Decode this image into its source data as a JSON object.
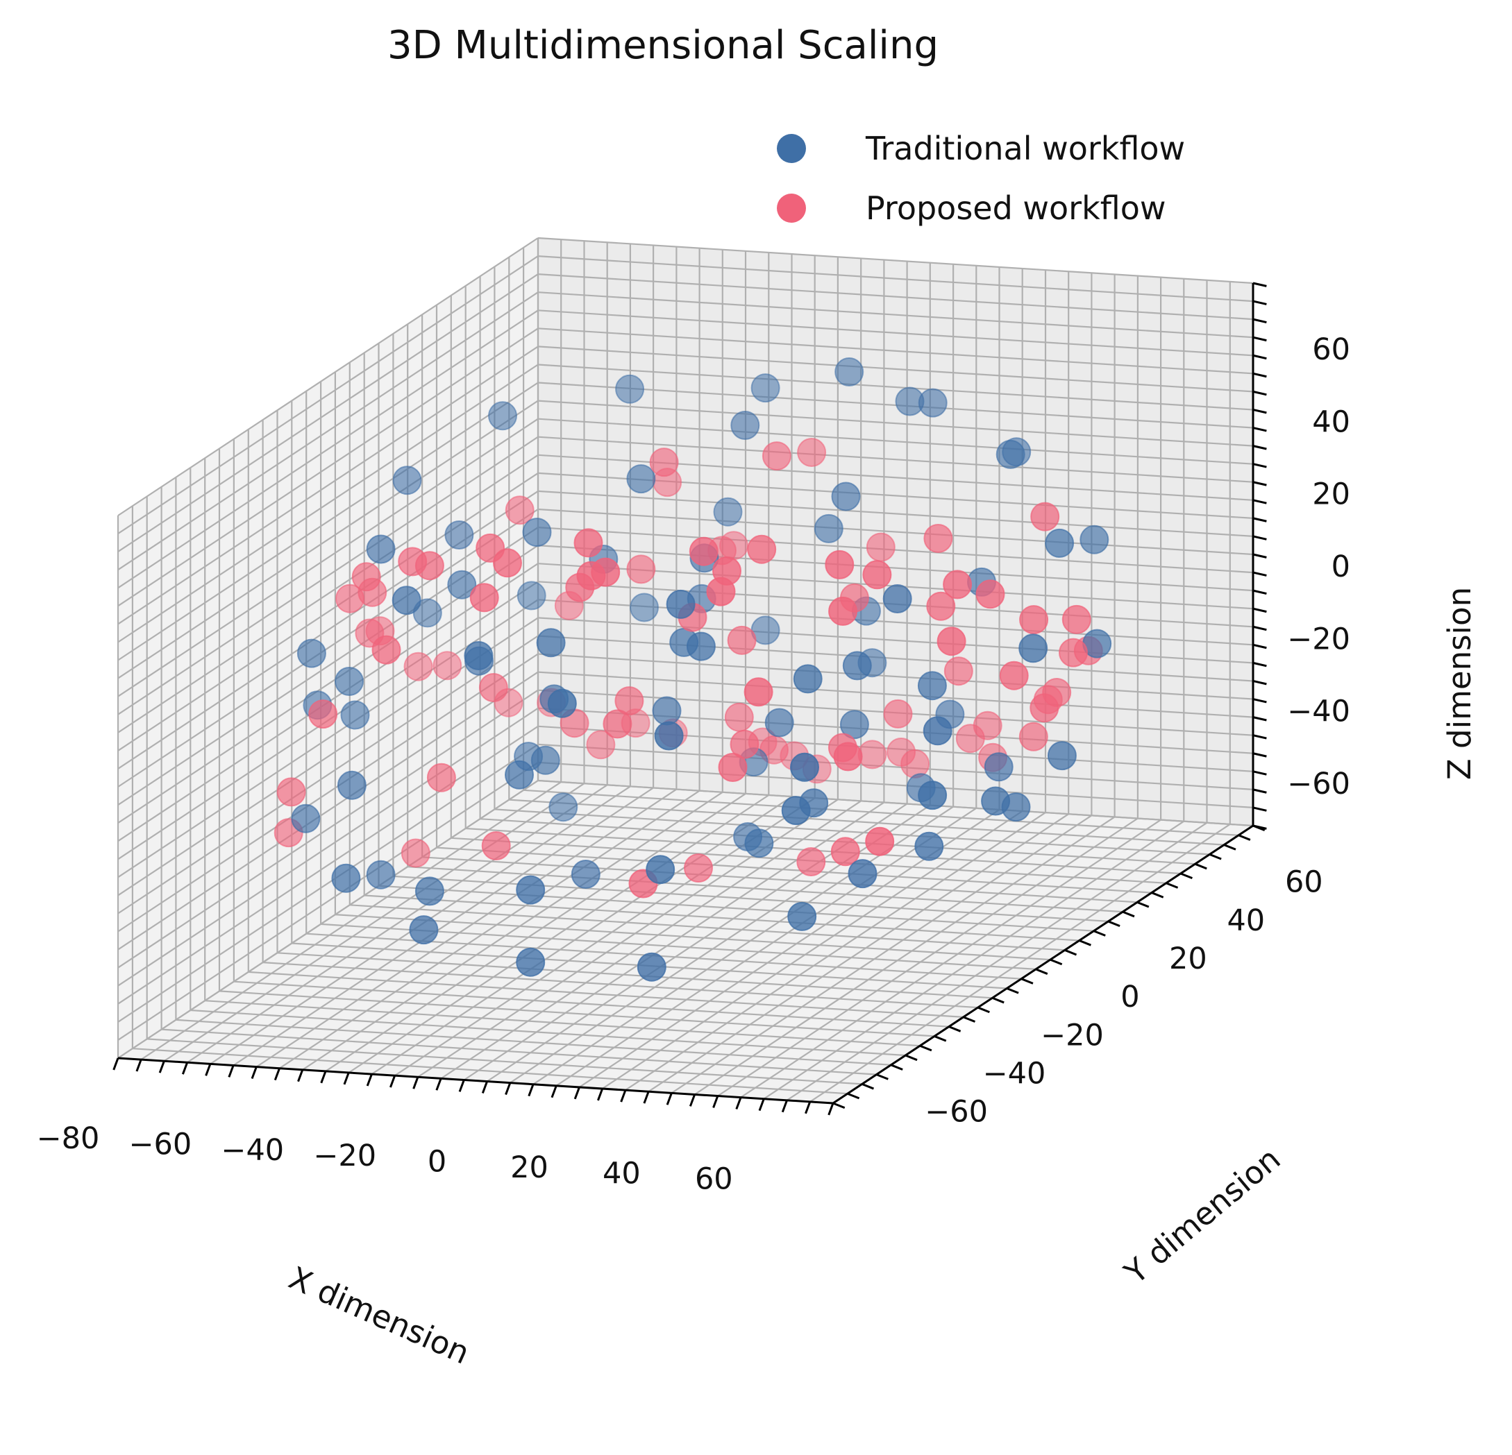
{
  "chart_data": {
    "type": "scatter",
    "title": "3D Multidimensional Scaling",
    "xlabel": "X dimension",
    "ylabel": "Y dimension",
    "zlabel": "Z dimension",
    "xlim": [
      -80,
      75
    ],
    "ylim": [
      -75,
      70
    ],
    "zlim": [
      -75,
      75
    ],
    "x_ticks": [
      "−80",
      "−60",
      "−40",
      "−20",
      "0",
      "20",
      "40",
      "60"
    ],
    "y_ticks": [
      "−60",
      "−40",
      "−20",
      "0",
      "20",
      "40",
      "60"
    ],
    "z_ticks": [
      "−60",
      "−40",
      "−20",
      "0",
      "20",
      "40",
      "60"
    ],
    "x_tick_values": [
      -80,
      -60,
      -40,
      -20,
      0,
      20,
      40,
      60
    ],
    "y_tick_values": [
      -60,
      -40,
      -20,
      0,
      20,
      40,
      60
    ],
    "z_tick_values": [
      -60,
      -40,
      -20,
      0,
      20,
      40,
      60
    ],
    "grid": true,
    "legend_position": "top-right",
    "series": [
      {
        "name": "Traditional workflow",
        "color": "#3F6FA6",
        "points": [
          [
            -60,
            -40,
            20
          ],
          [
            -55,
            -35,
            10
          ],
          [
            -45,
            -50,
            -10
          ],
          [
            -40,
            -20,
            30
          ],
          [
            -30,
            -10,
            40
          ],
          [
            -20,
            10,
            45
          ],
          [
            -10,
            30,
            50
          ],
          [
            0,
            50,
            55
          ],
          [
            15,
            55,
            45
          ],
          [
            30,
            60,
            30
          ],
          [
            50,
            55,
            10
          ],
          [
            60,
            40,
            -10
          ],
          [
            65,
            20,
            -30
          ],
          [
            55,
            -10,
            -40
          ],
          [
            40,
            -30,
            -50
          ],
          [
            20,
            -50,
            -55
          ],
          [
            0,
            -60,
            -50
          ],
          [
            -20,
            -65,
            -40
          ],
          [
            -40,
            -60,
            -30
          ],
          [
            -55,
            -50,
            -20
          ],
          [
            -65,
            -30,
            0
          ],
          [
            -60,
            0,
            10
          ],
          [
            -50,
            20,
            5
          ],
          [
            -35,
            35,
            -5
          ],
          [
            -15,
            45,
            -15
          ],
          [
            5,
            50,
            -25
          ],
          [
            25,
            45,
            -35
          ],
          [
            45,
            30,
            -40
          ],
          [
            60,
            5,
            -35
          ],
          [
            62,
            -20,
            -20
          ],
          [
            50,
            -45,
            0
          ],
          [
            30,
            -60,
            15
          ],
          [
            10,
            -65,
            25
          ],
          [
            -10,
            -62,
            35
          ],
          [
            -30,
            -55,
            45
          ],
          [
            -45,
            -40,
            50
          ],
          [
            -55,
            -15,
            55
          ],
          [
            -50,
            10,
            60
          ],
          [
            -35,
            30,
            58
          ],
          [
            -15,
            45,
            52
          ],
          [
            10,
            55,
            45
          ],
          [
            35,
            50,
            35
          ],
          [
            55,
            35,
            20
          ],
          [
            65,
            10,
            5
          ],
          [
            60,
            -15,
            -5
          ],
          [
            45,
            -40,
            -15
          ],
          [
            25,
            -55,
            -25
          ],
          [
            0,
            -60,
            -30
          ],
          [
            -25,
            -55,
            -35
          ],
          [
            -45,
            -40,
            -40
          ],
          [
            -20,
            -20,
            0
          ],
          [
            -5,
            -5,
            -10
          ],
          [
            10,
            10,
            -20
          ],
          [
            20,
            20,
            -25
          ],
          [
            -10,
            15,
            10
          ],
          [
            5,
            -15,
            15
          ],
          [
            15,
            -25,
            20
          ],
          [
            -25,
            5,
            25
          ],
          [
            30,
            5,
            0
          ],
          [
            0,
            0,
            30
          ],
          [
            -5,
            25,
            -40
          ],
          [
            15,
            -5,
            -45
          ],
          [
            35,
            -20,
            10
          ],
          [
            -35,
            -5,
            -25
          ],
          [
            5,
            35,
            20
          ],
          [
            -40,
            15,
            -50
          ],
          [
            40,
            15,
            -10
          ],
          [
            20,
            -40,
            40
          ],
          [
            -15,
            -40,
            -10
          ],
          [
            25,
            35,
            -50
          ],
          [
            -30,
            -30,
            15
          ],
          [
            45,
            -5,
            25
          ],
          [
            -10,
            -25,
            -45
          ],
          [
            10,
            40,
            -5
          ],
          [
            -50,
            -5,
            35
          ],
          [
            55,
            20,
            -45
          ],
          [
            -20,
            40,
            20
          ],
          [
            30,
            -10,
            -30
          ],
          [
            -5,
            -45,
            30
          ],
          [
            15,
            25,
            35
          ],
          [
            -60,
            -25,
            -5
          ],
          [
            0,
            15,
            -55
          ],
          [
            35,
            40,
            5
          ],
          [
            -25,
            -15,
            -20
          ],
          [
            50,
            -25,
            -40
          ]
        ]
      },
      {
        "name": "Proposed workflow",
        "color": "#F0627A",
        "points": [
          [
            -65,
            -40,
            -30
          ],
          [
            -55,
            -55,
            -10
          ],
          [
            -45,
            -60,
            15
          ],
          [
            -30,
            -62,
            35
          ],
          [
            -10,
            -60,
            50
          ],
          [
            10,
            -55,
            55
          ],
          [
            30,
            -40,
            50
          ],
          [
            50,
            -20,
            40
          ],
          [
            62,
            0,
            25
          ],
          [
            65,
            25,
            5
          ],
          [
            55,
            45,
            -15
          ],
          [
            40,
            55,
            -35
          ],
          [
            20,
            60,
            -50
          ],
          [
            0,
            58,
            -55
          ],
          [
            -20,
            52,
            -50
          ],
          [
            -40,
            40,
            -40
          ],
          [
            -55,
            20,
            -25
          ],
          [
            -62,
            0,
            -5
          ],
          [
            -60,
            -20,
            15
          ],
          [
            -50,
            -35,
            35
          ],
          [
            -35,
            -45,
            50
          ],
          [
            -15,
            -50,
            58
          ],
          [
            5,
            -48,
            60
          ],
          [
            25,
            -40,
            55
          ],
          [
            45,
            -25,
            45
          ],
          [
            58,
            -5,
            30
          ],
          [
            62,
            15,
            10
          ],
          [
            58,
            35,
            -10
          ],
          [
            45,
            50,
            -30
          ],
          [
            25,
            58,
            -45
          ],
          [
            5,
            60,
            -55
          ],
          [
            -15,
            55,
            -55
          ],
          [
            -35,
            45,
            -45
          ],
          [
            -52,
            30,
            -30
          ],
          [
            -62,
            10,
            -10
          ],
          [
            -64,
            -10,
            10
          ],
          [
            -58,
            -30,
            30
          ],
          [
            -45,
            -45,
            45
          ],
          [
            -25,
            -55,
            55
          ],
          [
            -5,
            -60,
            60
          ],
          [
            15,
            -58,
            58
          ],
          [
            35,
            -50,
            50
          ],
          [
            52,
            -35,
            38
          ],
          [
            63,
            -15,
            20
          ],
          [
            64,
            5,
            0
          ],
          [
            58,
            25,
            -20
          ],
          [
            45,
            42,
            -38
          ],
          [
            28,
            55,
            -52
          ],
          [
            8,
            60,
            -58
          ],
          [
            -12,
            58,
            -60
          ],
          [
            -10,
            -10,
            -5
          ],
          [
            5,
            5,
            5
          ],
          [
            15,
            -10,
            -15
          ],
          [
            -20,
            10,
            20
          ],
          [
            20,
            20,
            10
          ],
          [
            -5,
            20,
            -25
          ],
          [
            10,
            -20,
            25
          ],
          [
            -25,
            -5,
            -15
          ],
          [
            30,
            0,
            -20
          ],
          [
            0,
            -30,
            0
          ],
          [
            -15,
            30,
            15
          ],
          [
            25,
            -30,
            -10
          ],
          [
            -35,
            20,
            -35
          ],
          [
            35,
            25,
            25
          ],
          [
            -5,
            -35,
            40
          ],
          [
            20,
            35,
            -30
          ],
          [
            -30,
            -25,
            5
          ],
          [
            40,
            -15,
            -40
          ],
          [
            -40,
            0,
            40
          ],
          [
            10,
            45,
            10
          ],
          [
            -20,
            -40,
            -30
          ],
          [
            45,
            10,
            15
          ],
          [
            0,
            25,
            45
          ],
          [
            15,
            -45,
            -35
          ],
          [
            -45,
            25,
            0
          ],
          [
            30,
            40,
            -20
          ],
          [
            -10,
            40,
            -45
          ],
          [
            50,
            -30,
            -5
          ],
          [
            -30,
            35,
            30
          ],
          [
            5,
            -10,
            -50
          ],
          [
            -50,
            -20,
            -45
          ],
          [
            40,
            -45,
            20
          ],
          [
            -15,
            10,
            50
          ],
          [
            20,
            5,
            -55
          ],
          [
            -35,
            -35,
            -15
          ],
          [
            55,
            30,
            30
          ],
          [
            -5,
            45,
            35
          ],
          [
            25,
            -20,
            45
          ],
          [
            -25,
            50,
            5
          ],
          [
            60,
            -35,
            -25
          ]
        ]
      }
    ]
  }
}
